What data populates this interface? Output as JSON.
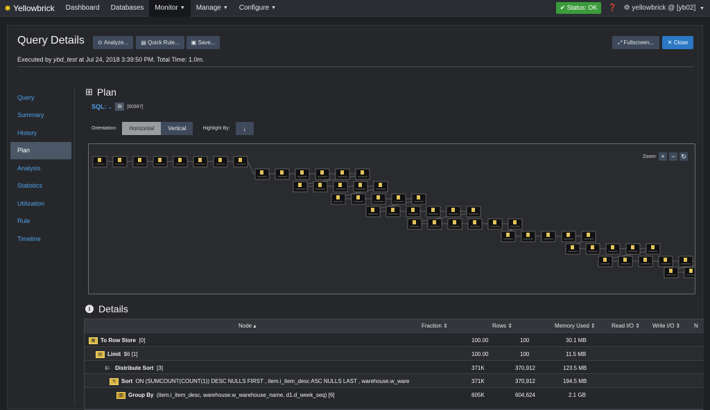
{
  "nav": {
    "brand": "Yellowbrick",
    "items": [
      {
        "label": "Dashboard",
        "caret": false,
        "active": false
      },
      {
        "label": "Databases",
        "caret": false,
        "active": false
      },
      {
        "label": "Monitor",
        "caret": true,
        "active": true
      },
      {
        "label": "Manage",
        "caret": true,
        "active": false
      },
      {
        "label": "Configure",
        "caret": true,
        "active": false
      }
    ],
    "status": "Status: OK",
    "help_icon": "question-icon",
    "user": "yellowbrick @ [yb02]"
  },
  "header": {
    "title": "Query Details",
    "buttons": {
      "analyze": "Analyze...",
      "quick_rule": "Quick Rule...",
      "save": "Save...",
      "fullscreen": "Fullscreen...",
      "close": "Close"
    },
    "subtitle_prefix": "Executed by ",
    "subtitle_user": "ybd_test",
    "subtitle_rest": " at Jul 24, 2018 3:39:50 PM. Total Time: 1.0m."
  },
  "sidenav": {
    "items": [
      "Query",
      "Summary",
      "History",
      "Plan",
      "Analysis",
      "Statistics",
      "Utilization",
      "Rule",
      "Timeline"
    ],
    "active": "Plan"
  },
  "plan": {
    "title": "Plan",
    "sql_label": "SQL:",
    "sql_id": "[60987]",
    "orientation_label": "Orientation:",
    "orientation_options": [
      "Horizontal",
      "Vertical"
    ],
    "orientation_selected": "Vertical",
    "highlight_label": "Highlight By:",
    "zoom_label": "Zoom:"
  },
  "details": {
    "title": "Details",
    "columns": [
      "Node",
      "Fraction",
      "Rows",
      "Memory Used",
      "Read I/O",
      "Write I/O",
      "N"
    ],
    "rows": [
      {
        "name": "To Row Store",
        "detail": "[0]",
        "fraction": "100.00",
        "rows": "100",
        "memory": "30.1 MB",
        "icon": "row-store-icon"
      },
      {
        "name": "Limit",
        "detail": "$6 [1]",
        "fraction": "100.00",
        "rows": "100",
        "memory": "11.5 MB",
        "icon": "limit-icon"
      },
      {
        "name": "Distribute Sort",
        "detail": "[3]",
        "fraction": "371K",
        "rows": "370,912",
        "memory": "123.5 MB",
        "icon": "distribute-icon"
      },
      {
        "name": "Sort",
        "detail": "ON (SUMCOUNT(COUNT(1)) DESC NULLS FIRST , item.i_item_desc ASC NULLS LAST , warehouse.w_ware",
        "fraction": "371K",
        "rows": "370,912",
        "memory": "194.5 MB",
        "icon": "sort-icon"
      },
      {
        "name": "Group By",
        "detail": "(item.i_item_desc, warehouse.w_warehouse_name, d1.d_week_seq) [6]",
        "fraction": "605K",
        "rows": "604,624",
        "memory": "2.1 GB",
        "icon": "group-by-icon"
      }
    ]
  }
}
